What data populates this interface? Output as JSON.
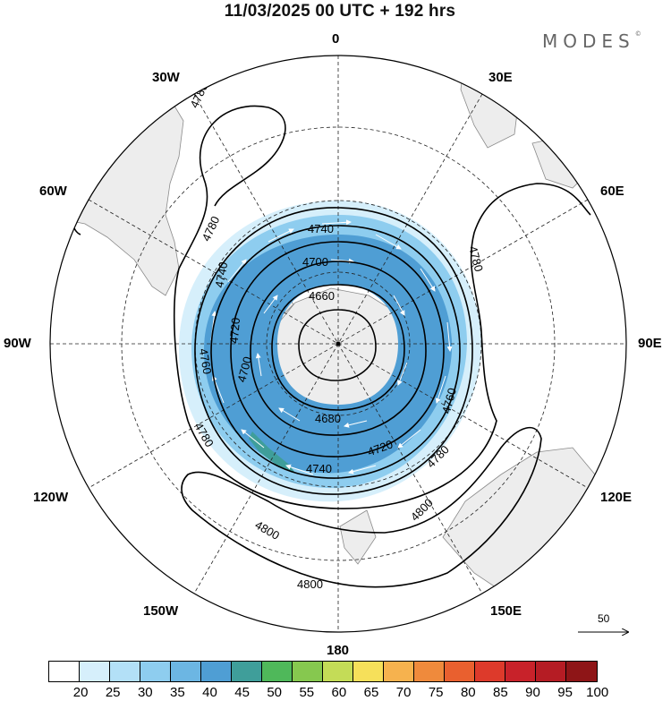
{
  "title": "11/03/2025  00 UTC  + 192 hrs",
  "brand": {
    "text": "MODES",
    "mark": "©"
  },
  "meridian_labels": {
    "n0": "0",
    "e30": "30E",
    "e60": "60E",
    "e90": "90E",
    "e120": "120E",
    "e150": "150E",
    "s180": "180",
    "w150": "150W",
    "w120": "120W",
    "w90": "90W",
    "w60": "60W",
    "w30": "30W"
  },
  "contours": [
    {
      "level": 4660,
      "label": "4660"
    },
    {
      "level": 4680,
      "label": "4680"
    },
    {
      "level": 4700,
      "label": "4700"
    },
    {
      "level": 4720,
      "label": "4720"
    },
    {
      "level": 4740,
      "label": "4740"
    },
    {
      "level": 4760,
      "label": "4760"
    },
    {
      "level": 4780,
      "label": "4780"
    },
    {
      "level": 4800,
      "label": "4800"
    }
  ],
  "wind_shading": {
    "description_units": "wind speed bins",
    "colors": [
      "#ffffff",
      "#d6effb",
      "#b3e0f7",
      "#8ecdef",
      "#6cb6e3",
      "#4f9ed4",
      "#3f9e9a",
      "#4fb85a",
      "#86c84f",
      "#c4dc57",
      "#f6e05a",
      "#f6b24e",
      "#ef8a3c",
      "#e9602f",
      "#dd3a2b",
      "#c8222a",
      "#b51c24",
      "#8e1517"
    ],
    "ticks": [
      "20",
      "25",
      "30",
      "35",
      "40",
      "45",
      "50",
      "55",
      "60",
      "65",
      "70",
      "75",
      "80",
      "85",
      "90",
      "95",
      "100"
    ]
  },
  "vector_reference": "50"
}
